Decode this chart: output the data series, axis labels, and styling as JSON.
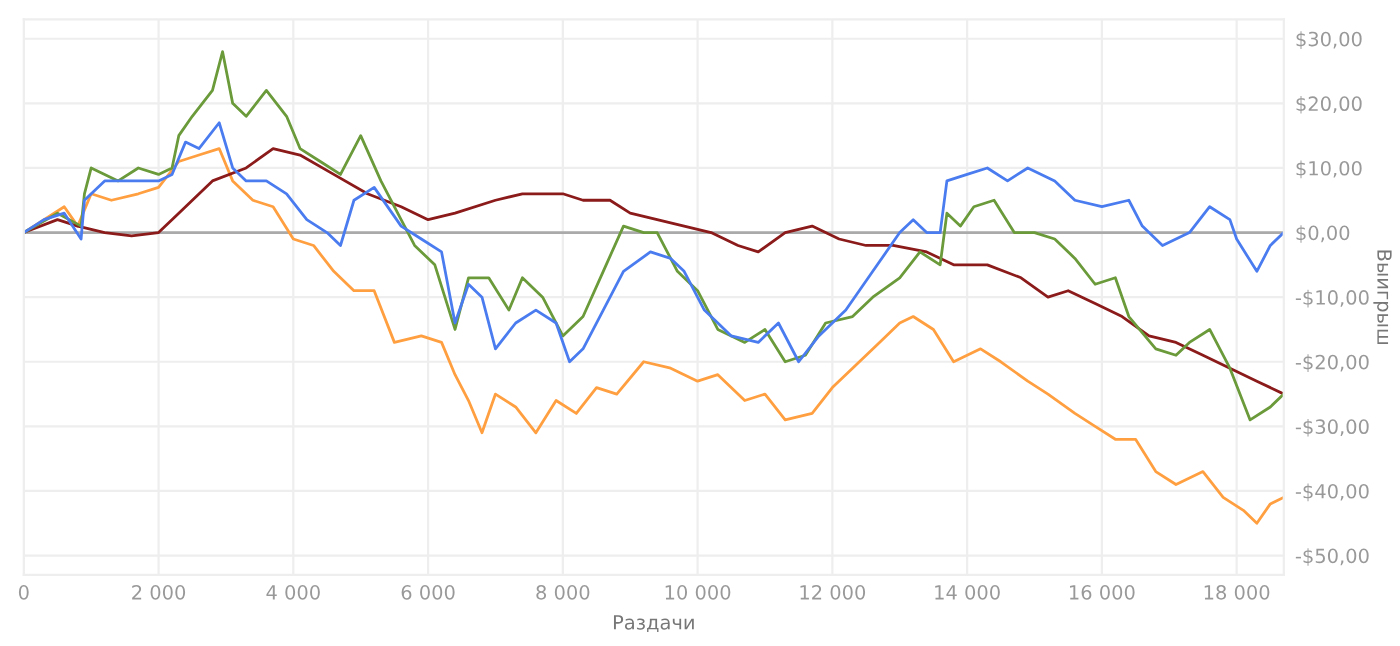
{
  "chart_data": {
    "type": "line",
    "xlabel": "Раздачи",
    "ylabel": "Выигрыш",
    "xlim": [
      0,
      18700
    ],
    "ylim": [
      -53,
      33
    ],
    "xticks": [
      0,
      {
        "value": 2000,
        "label": "2 000"
      },
      {
        "value": 4000,
        "label": "4 000"
      },
      {
        "value": 6000,
        "label": "6 000"
      },
      {
        "value": 8000,
        "label": "8 000"
      },
      {
        "value": 10000,
        "label": "10 000"
      },
      {
        "value": 12000,
        "label": "12 000"
      },
      {
        "value": 14000,
        "label": "14 000"
      },
      {
        "value": 16000,
        "label": "16 000"
      },
      {
        "value": 18000,
        "label": "18 000"
      }
    ],
    "yticks": [
      {
        "value": 30,
        "label": "$30,00"
      },
      {
        "value": 20,
        "label": "$20,00"
      },
      {
        "value": 10,
        "label": "$10,00"
      },
      {
        "value": 0,
        "label": "$0,00"
      },
      {
        "value": -10,
        "label": "-$10,00"
      },
      {
        "value": -20,
        "label": "-$20,00"
      },
      {
        "value": -30,
        "label": "-$30,00"
      },
      {
        "value": -40,
        "label": "-$40,00"
      },
      {
        "value": -50,
        "label": "-$50,00"
      }
    ],
    "grid": true,
    "legend": false,
    "marker": "none",
    "line_style": "solid",
    "ref_lines": [
      {
        "axis": "y",
        "value": 0,
        "color": "#aaaaaa"
      }
    ],
    "series": [
      {
        "color": "#ff9f40",
        "x": [
          0,
          300,
          600,
          800,
          1000,
          1300,
          1700,
          2000,
          2300,
          2600,
          2900,
          3100,
          3400,
          3700,
          4000,
          4300,
          4600,
          4900,
          5200,
          5500,
          5900,
          6200,
          6400,
          6600,
          6800,
          7000,
          7300,
          7600,
          7900,
          8200,
          8500,
          8800,
          9200,
          9600,
          10000,
          10300,
          10700,
          11000,
          11300,
          11700,
          12000,
          12300,
          12700,
          13000,
          13200,
          13500,
          13800,
          14200,
          14500,
          14900,
          15200,
          15600,
          15900,
          16200,
          16500,
          16800,
          17100,
          17500,
          17800,
          18100,
          18300,
          18500,
          18700
        ],
        "values": [
          0,
          2,
          4,
          1,
          6,
          5,
          6,
          7,
          11,
          12,
          13,
          8,
          5,
          4,
          -1,
          -2,
          -6,
          -9,
          -9,
          -17,
          -16,
          -17,
          -22,
          -26,
          -31,
          -25,
          -27,
          -31,
          -26,
          -28,
          -24,
          -25,
          -20,
          -21,
          -23,
          -22,
          -26,
          -25,
          -29,
          -28,
          -24,
          -21,
          -17,
          -14,
          -13,
          -15,
          -20,
          -18,
          -20,
          -23,
          -25,
          -28,
          -30,
          -32,
          -32,
          -37,
          -39,
          -37,
          -41,
          -43,
          -45,
          -42,
          -41
        ]
      },
      {
        "color": "#8b1a1a",
        "x": [
          0,
          500,
          800,
          1200,
          1600,
          2000,
          2300,
          2800,
          3300,
          3700,
          4100,
          4600,
          5100,
          5600,
          6000,
          6400,
          7000,
          7400,
          8000,
          8300,
          8700,
          9000,
          9400,
          9800,
          10200,
          10600,
          10900,
          11300,
          11700,
          12100,
          12500,
          12900,
          13400,
          13800,
          14300,
          14800,
          15200,
          15500,
          15900,
          16300,
          16700,
          17100,
          17500,
          17900,
          18300,
          18700
        ],
        "values": [
          0,
          2,
          1,
          0,
          -0.5,
          0,
          3,
          8,
          10,
          13,
          12,
          9,
          6,
          4,
          2,
          3,
          5,
          6,
          6,
          5,
          5,
          3,
          2,
          1,
          0,
          -2,
          -3,
          0,
          1,
          -1,
          -2,
          -2,
          -3,
          -5,
          -5,
          -7,
          -10,
          -9,
          -11,
          -13,
          -16,
          -17,
          -19,
          -21,
          -23,
          -25
        ]
      },
      {
        "color": "#6a9a3a",
        "x": [
          0,
          500,
          850,
          900,
          1000,
          1400,
          1700,
          2000,
          2200,
          2300,
          2500,
          2800,
          2950,
          3100,
          3300,
          3600,
          3900,
          4100,
          4400,
          4700,
          5000,
          5300,
          5600,
          5800,
          6100,
          6400,
          6600,
          6900,
          7200,
          7400,
          7700,
          8000,
          8300,
          8600,
          8900,
          9200,
          9400,
          9700,
          10000,
          10300,
          10700,
          11000,
          11300,
          11600,
          11900,
          12300,
          12600,
          13000,
          13300,
          13600,
          13700,
          13900,
          14100,
          14400,
          14700,
          15000,
          15300,
          15600,
          15900,
          16200,
          16400,
          16800,
          17100,
          17300,
          17600,
          17900,
          18200,
          18500,
          18700
        ],
        "values": [
          0,
          3,
          1,
          6,
          10,
          8,
          10,
          9,
          10,
          15,
          18,
          22,
          28,
          20,
          18,
          22,
          18,
          13,
          11,
          9,
          15,
          8,
          2,
          -2,
          -5,
          -15,
          -7,
          -7,
          -12,
          -7,
          -10,
          -16,
          -13,
          -6,
          1,
          0,
          0,
          -6,
          -9,
          -15,
          -17,
          -15,
          -20,
          -19,
          -14,
          -13,
          -10,
          -7,
          -3,
          -5,
          3,
          1,
          4,
          5,
          0,
          0,
          -1,
          -4,
          -8,
          -7,
          -13,
          -18,
          -19,
          -17,
          -15,
          -21,
          -29,
          -27,
          -25
        ]
      },
      {
        "color": "#4a7cf0",
        "x": [
          0,
          300,
          600,
          850,
          900,
          1200,
          1500,
          2000,
          2200,
          2400,
          2600,
          2900,
          3100,
          3300,
          3600,
          3900,
          4200,
          4500,
          4700,
          4900,
          5200,
          5600,
          5900,
          6200,
          6400,
          6600,
          6800,
          7000,
          7300,
          7600,
          7900,
          8100,
          8300,
          8600,
          8900,
          9300,
          9600,
          9800,
          10100,
          10500,
          10900,
          11200,
          11500,
          11800,
          12200,
          12600,
          13000,
          13200,
          13400,
          13600,
          13700,
          14000,
          14300,
          14600,
          14900,
          15300,
          15600,
          16000,
          16400,
          16600,
          16900,
          17300,
          17600,
          17900,
          18000,
          18300,
          18500,
          18700
        ],
        "values": [
          0,
          2,
          3,
          -1,
          5,
          8,
          8,
          8,
          9,
          14,
          13,
          17,
          10,
          8,
          8,
          6,
          2,
          0,
          -2,
          5,
          7,
          1,
          -1,
          -3,
          -14,
          -8,
          -10,
          -18,
          -14,
          -12,
          -14,
          -20,
          -18,
          -12,
          -6,
          -3,
          -4,
          -6,
          -12,
          -16,
          -17,
          -14,
          -20,
          -16,
          -12,
          -6,
          0,
          2,
          0,
          0,
          8,
          9,
          10,
          8,
          10,
          8,
          5,
          4,
          5,
          1,
          -2,
          0,
          4,
          2,
          -1,
          -6,
          -2,
          0
        ]
      }
    ]
  }
}
